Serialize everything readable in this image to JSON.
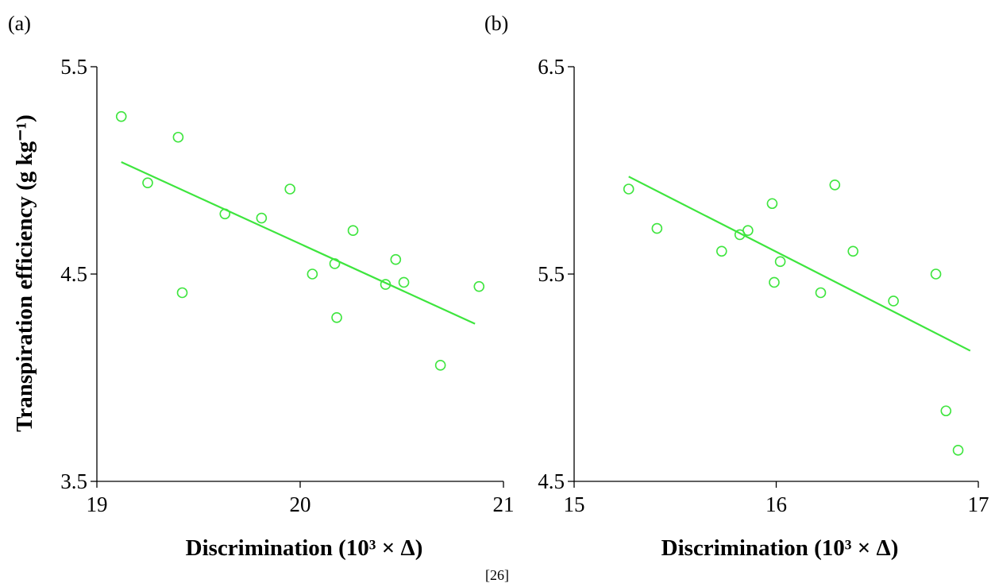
{
  "figure": {
    "source": "[26]",
    "ylabel": "Transpiration efficiency (g kg⁻¹)"
  },
  "chart_data": [
    {
      "type": "scatter",
      "panel": "(a)",
      "title": "",
      "xlabel": "Discrimination (10³ × Δ)",
      "ylabel": "Transpiration efficiency (g kg⁻¹)",
      "xlim": [
        19,
        21
      ],
      "ylim": [
        3.5,
        5.5
      ],
      "xticks": [
        "19",
        "20",
        "21"
      ],
      "yticks": [
        "3.5",
        "4.5",
        "5.5"
      ],
      "grid": false,
      "color": "#3ee53e",
      "points": [
        {
          "x": 19.12,
          "y": 5.26
        },
        {
          "x": 19.25,
          "y": 4.94
        },
        {
          "x": 19.4,
          "y": 5.16
        },
        {
          "x": 19.42,
          "y": 4.41
        },
        {
          "x": 19.63,
          "y": 4.79
        },
        {
          "x": 19.81,
          "y": 4.77
        },
        {
          "x": 19.95,
          "y": 4.91
        },
        {
          "x": 20.06,
          "y": 4.5
        },
        {
          "x": 20.17,
          "y": 4.55
        },
        {
          "x": 20.18,
          "y": 4.29
        },
        {
          "x": 20.26,
          "y": 4.71
        },
        {
          "x": 20.42,
          "y": 4.45
        },
        {
          "x": 20.47,
          "y": 4.57
        },
        {
          "x": 20.51,
          "y": 4.46
        },
        {
          "x": 20.69,
          "y": 4.06
        },
        {
          "x": 20.88,
          "y": 4.44
        }
      ],
      "trendline": [
        {
          "x": 19.12,
          "y": 5.04
        },
        {
          "x": 20.86,
          "y": 4.26
        }
      ]
    },
    {
      "type": "scatter",
      "panel": "(b)",
      "title": "",
      "xlabel": "Discrimination (10³ × Δ)",
      "ylabel": "",
      "xlim": [
        15,
        17
      ],
      "ylim": [
        4.5,
        6.5
      ],
      "xticks": [
        "15",
        "16",
        "17"
      ],
      "yticks": [
        "4.5",
        "5.5",
        "6.5"
      ],
      "grid": false,
      "color": "#3ee53e",
      "points": [
        {
          "x": 15.27,
          "y": 5.91
        },
        {
          "x": 15.41,
          "y": 5.72
        },
        {
          "x": 15.73,
          "y": 5.61
        },
        {
          "x": 15.82,
          "y": 5.69
        },
        {
          "x": 15.86,
          "y": 5.71
        },
        {
          "x": 15.98,
          "y": 5.84
        },
        {
          "x": 15.99,
          "y": 5.46
        },
        {
          "x": 16.02,
          "y": 5.56
        },
        {
          "x": 16.22,
          "y": 5.41
        },
        {
          "x": 16.29,
          "y": 5.93
        },
        {
          "x": 16.38,
          "y": 5.61
        },
        {
          "x": 16.58,
          "y": 5.37
        },
        {
          "x": 16.79,
          "y": 5.5
        },
        {
          "x": 16.84,
          "y": 4.84
        },
        {
          "x": 16.9,
          "y": 4.65
        }
      ],
      "trendline": [
        {
          "x": 15.27,
          "y": 5.97
        },
        {
          "x": 16.96,
          "y": 5.13
        }
      ]
    }
  ]
}
